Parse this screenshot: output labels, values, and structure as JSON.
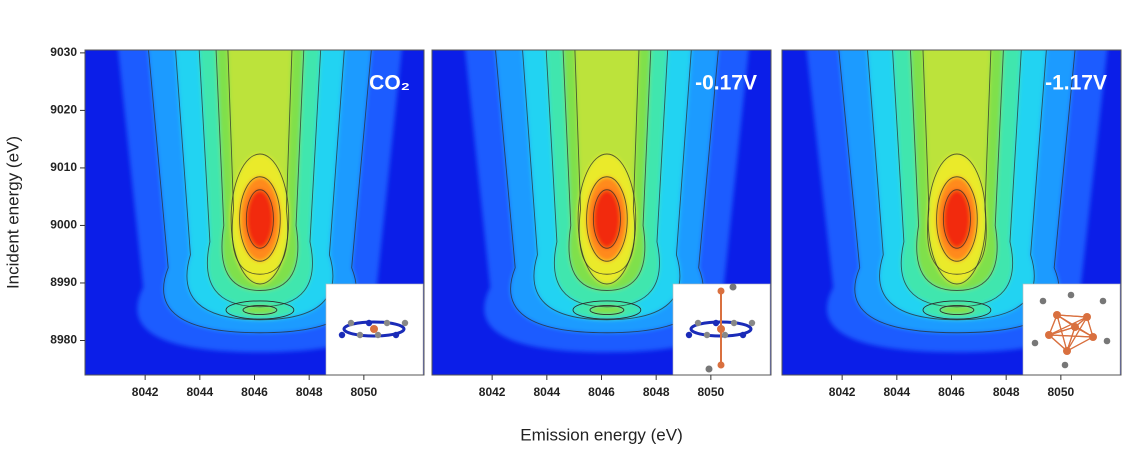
{
  "chart_data": [
    {
      "type": "contour",
      "label": "CO₂",
      "ylabel": "Incident energy (eV)",
      "xlim": [
        8039.8,
        8052.2
      ],
      "ylim": [
        8974,
        9030.5
      ],
      "xticks": [
        8042,
        8044,
        8046,
        8048,
        8050
      ],
      "yticks": [
        8980,
        8990,
        9000,
        9010,
        9020,
        9030
      ]
    },
    {
      "type": "contour",
      "label": "-0.17V",
      "xlabel": "Emission energy (eV)",
      "xlim": [
        8039.8,
        8052.2
      ],
      "ylim": [
        8974,
        9030.5
      ],
      "xticks": [
        8042,
        8044,
        8046,
        8048,
        8050
      ]
    },
    {
      "type": "contour",
      "label": "-1.17V",
      "xlim": [
        8039.8,
        8052.2
      ],
      "ylim": [
        8974,
        9030.5
      ],
      "xticks": [
        8042,
        8044,
        8046,
        8048,
        8050
      ]
    }
  ]
}
